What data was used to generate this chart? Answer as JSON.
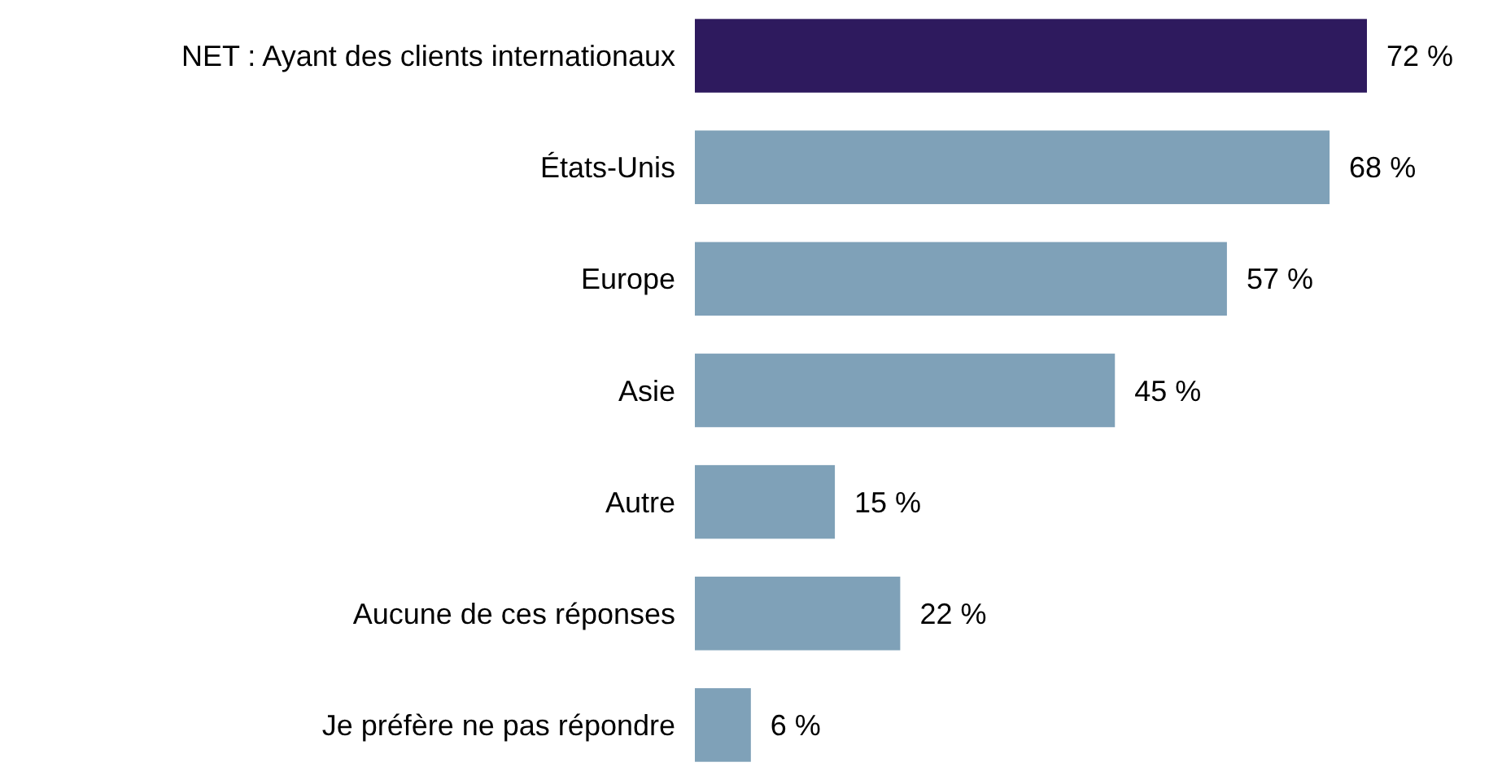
{
  "chart_data": {
    "type": "bar",
    "orientation": "horizontal",
    "categories": [
      "NET : Ayant des clients internationaux",
      "États-Unis",
      "Europe",
      "Asie",
      "Autre",
      "Aucune de ces réponses",
      "Je préfère ne pas répondre"
    ],
    "values": [
      72,
      68,
      57,
      45,
      15,
      22,
      6
    ],
    "colors": [
      "#2e1a5e",
      "#7fa1b8",
      "#7fa1b8",
      "#7fa1b8",
      "#7fa1b8",
      "#7fa1b8",
      "#7fa1b8"
    ],
    "value_labels": [
      "72 %",
      "68 %",
      "57 %",
      "45 %",
      "15 %",
      "22 %",
      "6 %"
    ],
    "xlim": [
      0,
      72
    ]
  }
}
